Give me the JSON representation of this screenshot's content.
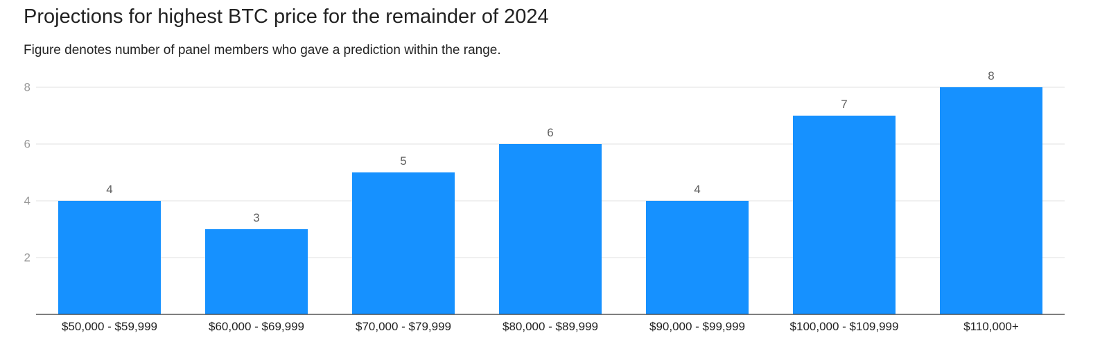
{
  "chart_data": {
    "type": "bar",
    "title": "Projections for highest BTC price for the remainder of 2024",
    "subtitle": "Figure denotes number of panel members who gave a prediction within the range.",
    "categories": [
      "$50,000 - $59,999",
      "$60,000 - $69,999",
      "$70,000 - $79,999",
      "$80,000 - $89,999",
      "$90,000 - $99,999",
      "$100,000 - $109,999",
      "$110,000+"
    ],
    "values": [
      4,
      3,
      5,
      6,
      4,
      7,
      8
    ],
    "data_labels": [
      "4",
      "3",
      "5",
      "6",
      "4",
      "7",
      "8"
    ],
    "y_ticks": [
      2,
      4,
      6,
      8
    ],
    "y_tick_labels": [
      "2",
      "4",
      "6",
      "8"
    ],
    "ylim": [
      0,
      8
    ],
    "grid": true,
    "legend": "none",
    "colors": {
      "bar": "#1691ff",
      "grid": "#e2e2e2",
      "axis": "#333333"
    }
  }
}
